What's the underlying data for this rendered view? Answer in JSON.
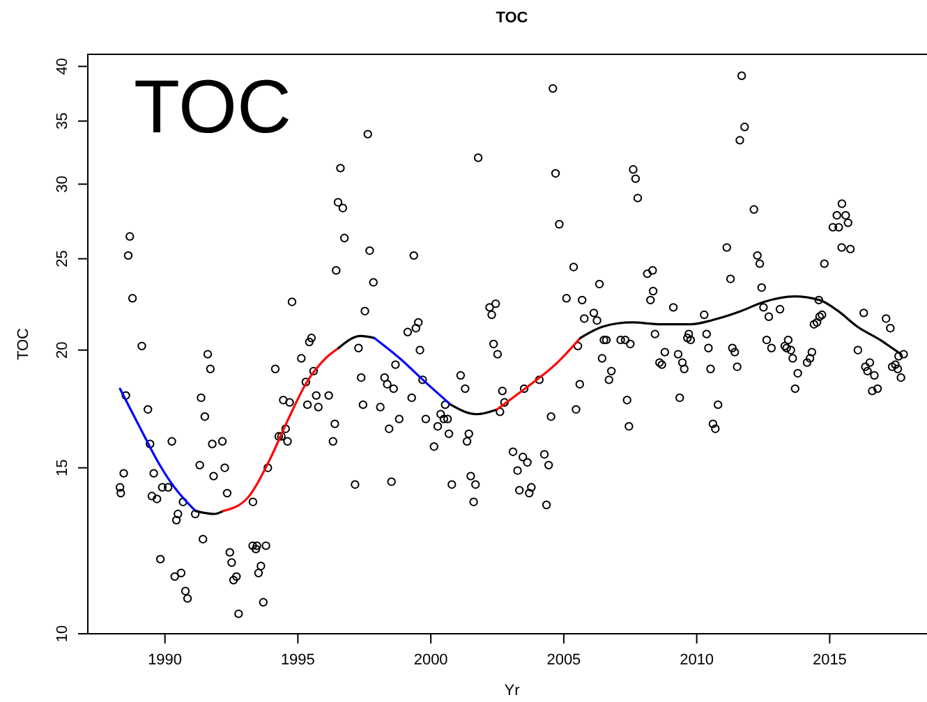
{
  "chart_data": {
    "type": "scatter",
    "title": "TOC",
    "xlabel": "Yr",
    "ylabel": "TOC",
    "annotations": [
      "TOC"
    ],
    "xlim": [
      1987.1,
      2019.0
    ],
    "xticks": [
      1990,
      1995,
      2000,
      2005,
      2010,
      2015
    ],
    "ylim": [
      10,
      41.2
    ],
    "yticks": [
      10,
      15,
      20,
      25,
      30,
      35,
      40
    ],
    "log": true,
    "series": [
      {
        "marker": "circle",
        "color": "#000000",
        "x": [
          1988.31,
          1988.34,
          1988.45,
          1988.53,
          1988.62,
          1988.68,
          1988.78,
          1989.13,
          1989.36,
          1989.44,
          1989.51,
          1989.58,
          1989.7,
          1989.83,
          1989.9,
          1990.12,
          1990.26,
          1990.37,
          1990.43,
          1990.49,
          1990.61,
          1990.68,
          1990.77,
          1990.85,
          1991.14,
          1991.31,
          1991.36,
          1991.43,
          1991.5,
          1991.61,
          1991.71,
          1991.78,
          1991.83,
          1992.16,
          1992.25,
          1992.34,
          1992.44,
          1992.51,
          1992.58,
          1992.69,
          1992.77,
          1993.3,
          1993.31,
          1993.42,
          1993.46,
          1993.52,
          1993.61,
          1993.7,
          1993.8,
          1993.87,
          1994.15,
          1994.28,
          1994.38,
          1994.45,
          1994.54,
          1994.61,
          1994.69,
          1994.78,
          1995.13,
          1995.3,
          1995.36,
          1995.43,
          1995.51,
          1995.59,
          1995.69,
          1995.77,
          1996.16,
          1996.32,
          1996.39,
          1996.44,
          1996.51,
          1996.6,
          1996.69,
          1996.75,
          1997.15,
          1997.28,
          1997.38,
          1997.45,
          1997.52,
          1997.63,
          1997.7,
          1997.84,
          1998.1,
          1998.26,
          1998.36,
          1998.43,
          1998.52,
          1998.6,
          1998.67,
          1998.81,
          1999.13,
          1999.28,
          1999.36,
          1999.44,
          1999.53,
          1999.59,
          1999.69,
          1999.81,
          2000.12,
          2000.26,
          2000.37,
          2000.49,
          2000.54,
          2000.63,
          2000.68,
          2000.79,
          2001.12,
          2001.29,
          2001.36,
          2001.43,
          2001.5,
          2001.61,
          2001.68,
          2001.78,
          2002.21,
          2002.29,
          2002.36,
          2002.44,
          2002.51,
          2002.6,
          2002.69,
          2002.77,
          2003.09,
          2003.26,
          2003.33,
          2003.46,
          2003.51,
          2003.63,
          2003.7,
          2003.78,
          2004.08,
          2004.27,
          2004.35,
          2004.43,
          2004.52,
          2004.59,
          2004.69,
          2004.83,
          2005.1,
          2005.37,
          2005.46,
          2005.53,
          2005.6,
          2005.69,
          2005.77,
          2006.13,
          2006.25,
          2006.34,
          2006.44,
          2006.51,
          2006.6,
          2006.7,
          2006.79,
          2007.14,
          2007.31,
          2007.38,
          2007.45,
          2007.5,
          2007.61,
          2007.7,
          2007.78,
          2008.14,
          2008.26,
          2008.34,
          2008.36,
          2008.43,
          2008.6,
          2008.69,
          2008.8,
          2009.12,
          2009.3,
          2009.36,
          2009.46,
          2009.53,
          2009.65,
          2009.7,
          2009.77,
          2010.28,
          2010.37,
          2010.44,
          2010.52,
          2010.61,
          2010.7,
          2010.8,
          2011.13,
          2011.27,
          2011.34,
          2011.43,
          2011.52,
          2011.62,
          2011.69,
          2011.8,
          2012.15,
          2012.28,
          2012.37,
          2012.44,
          2012.51,
          2012.63,
          2012.71,
          2012.81,
          2013.13,
          2013.31,
          2013.38,
          2013.44,
          2013.54,
          2013.61,
          2013.7,
          2013.8,
          2014.15,
          2014.26,
          2014.33,
          2014.41,
          2014.52,
          2014.59,
          2014.62,
          2014.71,
          2014.8,
          2015.12,
          2015.27,
          2015.34,
          2015.45,
          2015.46,
          2015.6,
          2015.69,
          2015.78,
          2016.06,
          2016.28,
          2016.34,
          2016.42,
          2016.51,
          2016.6,
          2016.68,
          2016.8,
          2017.12,
          2017.28,
          2017.35,
          2017.47,
          2017.56,
          2017.59,
          2017.68,
          2017.78
        ],
        "values": [
          14.3,
          14.1,
          14.8,
          17.9,
          25.2,
          26.4,
          22.7,
          20.2,
          17.3,
          15.9,
          14.0,
          14.8,
          13.9,
          12.0,
          14.3,
          14.3,
          16.0,
          11.5,
          13.2,
          13.4,
          11.6,
          13.8,
          11.1,
          10.9,
          13.4,
          15.1,
          17.8,
          12.6,
          17.0,
          19.8,
          19.1,
          15.9,
          14.7,
          16.0,
          15.0,
          14.1,
          12.2,
          11.9,
          11.4,
          11.5,
          10.5,
          12.4,
          13.8,
          12.3,
          12.4,
          11.6,
          11.8,
          10.8,
          12.4,
          15.0,
          19.1,
          16.2,
          16.2,
          17.7,
          16.5,
          16.0,
          17.6,
          22.5,
          19.6,
          18.5,
          17.5,
          20.4,
          20.6,
          19.0,
          17.9,
          17.4,
          17.9,
          16.0,
          16.7,
          24.3,
          28.7,
          31.2,
          28.3,
          26.3,
          14.4,
          20.1,
          18.7,
          17.5,
          22.0,
          33.9,
          25.5,
          23.6,
          17.4,
          18.7,
          18.4,
          16.5,
          14.5,
          18.2,
          19.3,
          16.9,
          20.9,
          17.8,
          25.2,
          21.1,
          21.4,
          20.0,
          18.6,
          16.9,
          15.8,
          16.6,
          17.1,
          16.9,
          17.5,
          16.9,
          16.3,
          14.4,
          18.8,
          18.2,
          16.0,
          16.3,
          14.7,
          13.8,
          14.4,
          32.0,
          22.2,
          21.8,
          20.3,
          22.4,
          19.8,
          17.2,
          18.1,
          17.6,
          15.6,
          14.9,
          14.2,
          15.4,
          18.2,
          15.2,
          14.1,
          14.3,
          18.6,
          15.5,
          13.7,
          15.1,
          17.0,
          37.9,
          30.8,
          27.2,
          22.7,
          24.5,
          17.3,
          20.2,
          18.4,
          22.6,
          21.6,
          21.9,
          21.5,
          23.5,
          19.6,
          20.5,
          20.5,
          18.6,
          19.0,
          20.5,
          20.5,
          17.7,
          16.6,
          20.3,
          31.1,
          30.4,
          29.0,
          24.1,
          22.6,
          24.3,
          23.1,
          20.8,
          19.4,
          19.3,
          19.9,
          22.2,
          19.8,
          17.8,
          19.4,
          19.1,
          20.6,
          20.8,
          20.5,
          21.8,
          20.8,
          20.1,
          19.1,
          16.7,
          16.5,
          17.5,
          25.7,
          23.8,
          20.1,
          19.9,
          19.2,
          33.4,
          39.1,
          34.5,
          28.2,
          25.2,
          24.7,
          23.3,
          22.2,
          20.5,
          21.7,
          20.1,
          22.1,
          20.2,
          20.1,
          20.5,
          20.0,
          19.6,
          18.2,
          18.9,
          19.4,
          19.6,
          19.9,
          21.3,
          21.4,
          22.6,
          21.7,
          21.8,
          24.7,
          27.0,
          27.8,
          27.0,
          25.7,
          28.6,
          27.8,
          27.3,
          25.6,
          20.0,
          21.9,
          19.2,
          19.0,
          19.4,
          18.1,
          18.8,
          18.2,
          21.6,
          21.1,
          19.2,
          19.3,
          19.1,
          19.7,
          18.7,
          19.8
        ]
      },
      {
        "type": "line",
        "color": "#0000ff",
        "x": [
          1988.31,
          1988.71,
          1989.23,
          1989.75,
          1990.28,
          1990.72,
          1991.15
        ],
        "values": [
          18.2,
          17.3,
          16.2,
          15.2,
          14.4,
          13.9,
          13.5
        ]
      },
      {
        "type": "line",
        "color": "#000000",
        "x": [
          1991.15,
          1991.85,
          1992.2
        ],
        "values": [
          13.5,
          13.4,
          13.5
        ]
      },
      {
        "type": "line",
        "color": "#ff0000",
        "x": [
          1992.2,
          1993.07,
          1993.94,
          1994.64,
          1995.34,
          1996.04,
          1996.53
        ],
        "values": [
          13.5,
          13.9,
          15.3,
          16.9,
          18.5,
          19.6,
          20.1
        ]
      },
      {
        "type": "line",
        "color": "#000000",
        "x": [
          1996.53,
          1997.35,
          1997.87
        ],
        "values": [
          20.1,
          20.7,
          20.6
        ]
      },
      {
        "type": "line",
        "color": "#0000ff",
        "x": [
          1997.87,
          1998.83,
          1999.7,
          2000.75
        ],
        "values": [
          20.6,
          19.6,
          18.6,
          17.5
        ]
      },
      {
        "type": "line",
        "color": "#000000",
        "x": [
          2000.75,
          2001.71,
          2002.49
        ],
        "values": [
          17.5,
          17.1,
          17.3
        ]
      },
      {
        "type": "line",
        "color": "#ff0000",
        "x": [
          2002.49,
          2003.54,
          2004.76,
          2005.62
        ],
        "values": [
          17.3,
          18.2,
          19.4,
          20.6
        ]
      },
      {
        "type": "line",
        "color": "#000000",
        "x": [
          2005.62,
          2006.51,
          2007.56,
          2008.69,
          2009.74,
          2010.79,
          2011.66,
          2012.53,
          2013.67,
          2014.62,
          2015.32,
          2016.02,
          2016.9,
          2017.68
        ],
        "values": [
          20.6,
          21.2,
          21.4,
          21.3,
          21.3,
          21.6,
          22.0,
          22.5,
          22.8,
          22.6,
          22.0,
          21.2,
          20.5,
          19.8
        ]
      }
    ]
  }
}
